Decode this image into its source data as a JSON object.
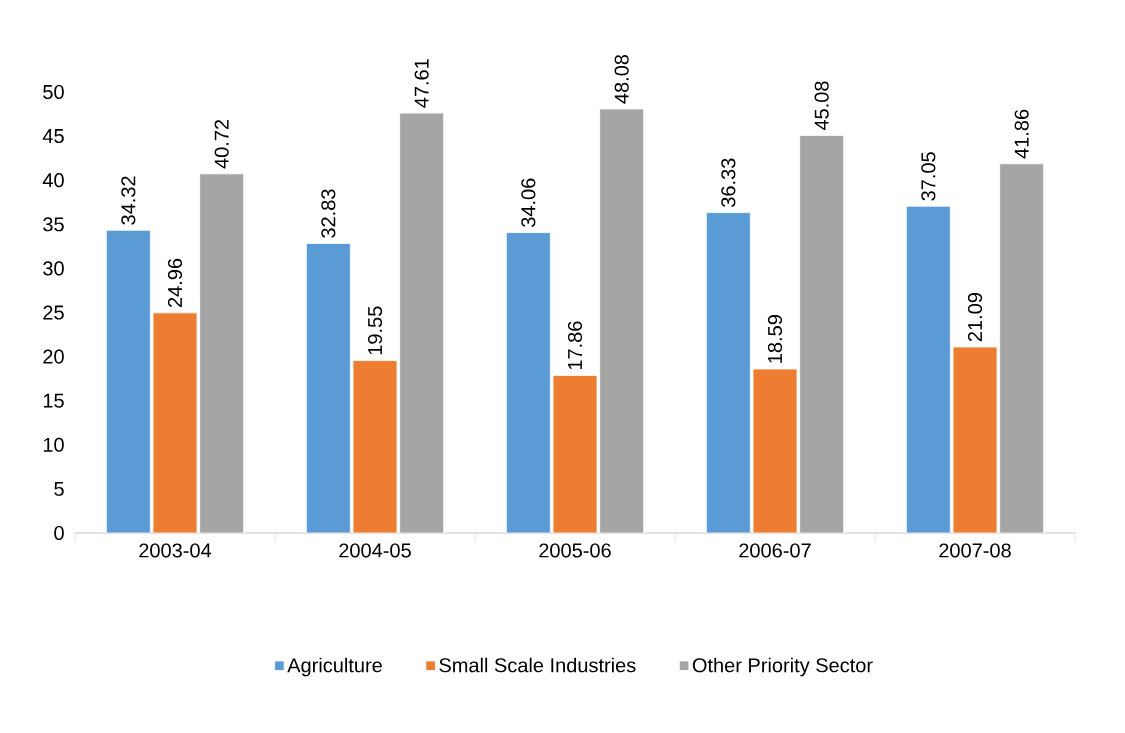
{
  "chart_data": {
    "type": "bar",
    "categories": [
      "2003-04",
      "2004-05",
      "2005-06",
      "2006-07",
      "2007-08"
    ],
    "series": [
      {
        "name": "Agriculture",
        "color": "#5b9bd5",
        "values": [
          34.32,
          32.83,
          34.06,
          36.33,
          37.05
        ]
      },
      {
        "name": "Small Scale Industries",
        "color": "#ed7d31",
        "values": [
          24.96,
          19.55,
          17.86,
          18.59,
          21.09
        ]
      },
      {
        "name": "Other Priority Sector",
        "color": "#a5a5a5",
        "values": [
          40.72,
          47.61,
          48.08,
          45.08,
          41.86
        ]
      }
    ],
    "ylim": [
      0,
      50
    ],
    "yticks": [
      0,
      5,
      10,
      15,
      20,
      25,
      30,
      35,
      40,
      45,
      50
    ],
    "data_labels": true,
    "legend": "bottom"
  }
}
